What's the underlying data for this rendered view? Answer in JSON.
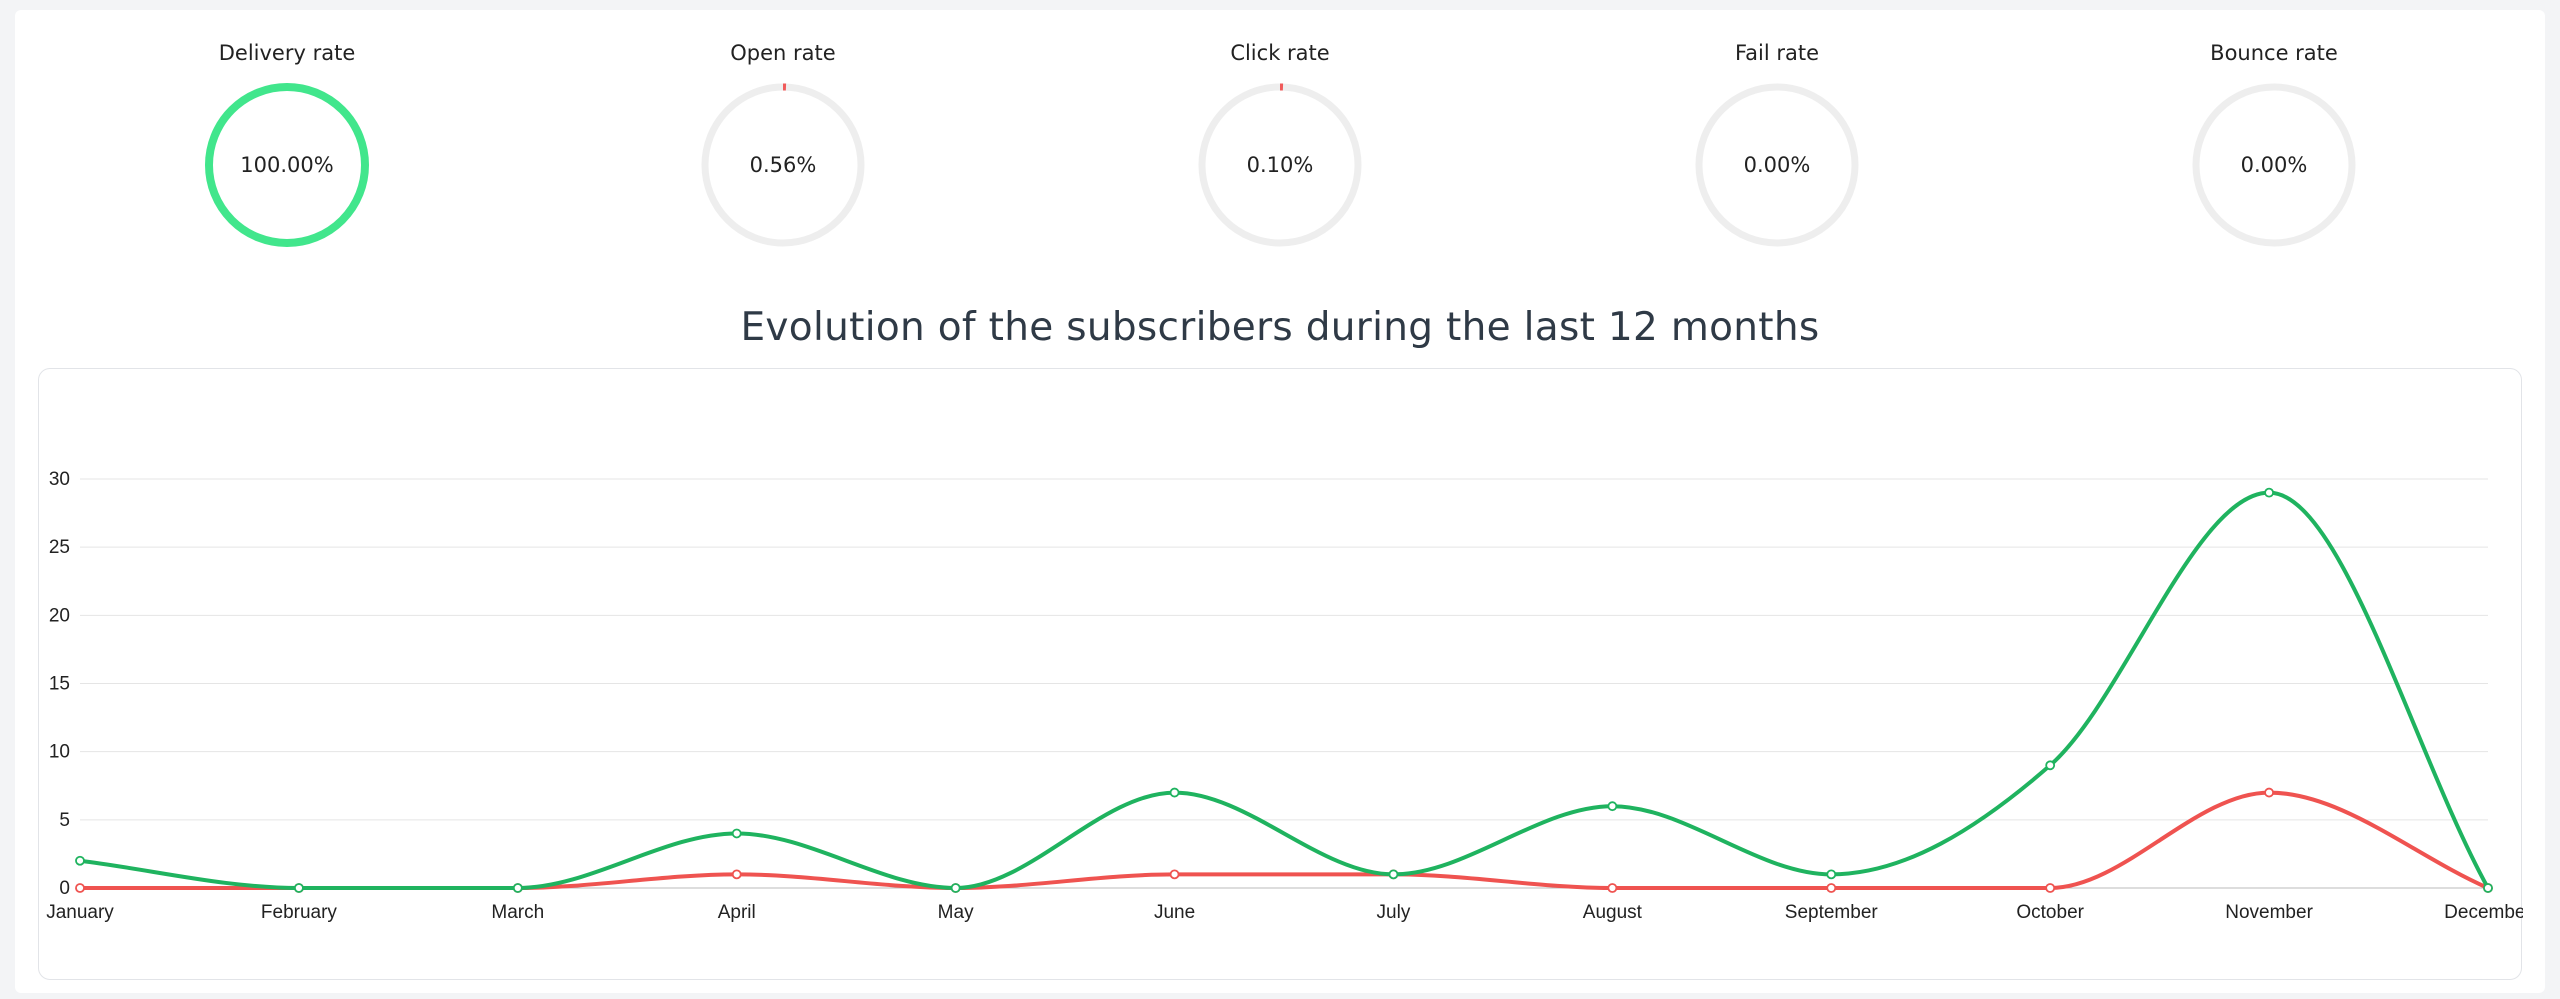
{
  "stats": [
    {
      "label": "Delivery rate",
      "value_text": "100.00%",
      "fraction": 1.0,
      "color": "#41e68c"
    },
    {
      "label": "Open rate",
      "value_text": "0.56%",
      "fraction": 0.0056,
      "color": "#f05a5a"
    },
    {
      "label": "Click rate",
      "value_text": "0.10%",
      "fraction": 0.001,
      "color": "#f05a5a"
    },
    {
      "label": "Fail rate",
      "value_text": "0.00%",
      "fraction": 0.0,
      "color": "#f05a5a"
    },
    {
      "label": "Bounce rate",
      "value_text": "0.00%",
      "fraction": 0.0,
      "color": "#f05a5a"
    }
  ],
  "colors": {
    "track": "#eeeeee",
    "green_series": "#1fb35f",
    "red_series": "#ef5350",
    "grid": "#e5e5e5"
  },
  "chart_data": {
    "type": "line",
    "title": "Evolution of the subscribers during the last 12 months",
    "categories": [
      "January",
      "February",
      "March",
      "April",
      "May",
      "June",
      "July",
      "August",
      "September",
      "October",
      "November",
      "December"
    ],
    "series": [
      {
        "color": "#1fb35f",
        "values": [
          2,
          0,
          0,
          4,
          0,
          7,
          1,
          6,
          1,
          9,
          29,
          0
        ]
      },
      {
        "color": "#ef5350",
        "values": [
          0,
          0,
          0,
          1,
          0,
          1,
          1,
          0,
          0,
          0,
          7,
          0
        ]
      }
    ],
    "yticks": [
      0,
      5,
      10,
      15,
      20,
      25,
      30
    ],
    "ylim": [
      0,
      30
    ],
    "grid": true,
    "legend": "none"
  }
}
